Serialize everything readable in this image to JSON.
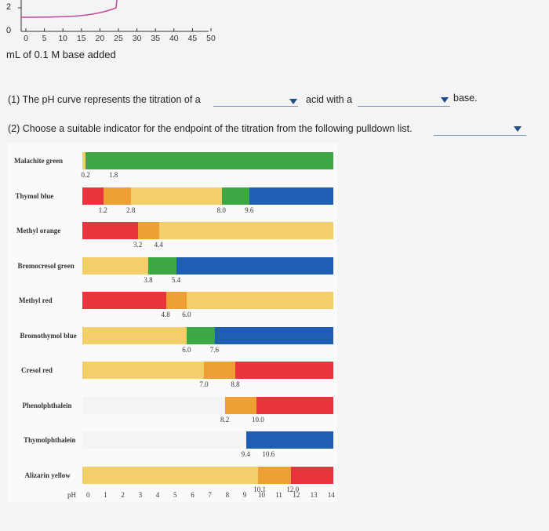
{
  "top_chart": {
    "y_ticks": [
      "2",
      "0"
    ],
    "x_ticks": [
      "0",
      "5",
      "10",
      "15",
      "20",
      "25",
      "30",
      "35",
      "40",
      "45",
      "50"
    ],
    "xlabel": "mL of 0.1 M base added"
  },
  "question1": {
    "part1": "(1) The pH curve represents the titration of a",
    "part2": "acid with a",
    "part3": "base."
  },
  "question2": {
    "text": "(2) Choose a suitable indicator for the endpoint of the titration from the following pulldown list."
  },
  "indicators": [
    {
      "name": "Malachite green",
      "low": "0.2",
      "high": "1.8"
    },
    {
      "name": "Thymol blue",
      "low": "1.2",
      "high": "2.8",
      "low2": "8.0",
      "high2": "9.6"
    },
    {
      "name": "Methyl orange",
      "low": "3.2",
      "high": "4.4"
    },
    {
      "name": "Bromocresol green",
      "low": "3.8",
      "high": "5.4"
    },
    {
      "name": "Methyl red",
      "low": "4.8",
      "high": "6.0"
    },
    {
      "name": "Bromothymol blue",
      "low": "6.0",
      "high": "7.6"
    },
    {
      "name": "Cresol red",
      "low": "7.0",
      "high": "8.8"
    },
    {
      "name": "Phenolphthalein",
      "low": "8.2",
      "high": "10.0"
    },
    {
      "name": "Thymolphthalein",
      "low": "9.4",
      "high": "10.6"
    },
    {
      "name": "Alizarin yellow",
      "low": "10.1",
      "high": "12.0"
    }
  ],
  "ph_axis": {
    "label": "pH",
    "ticks": [
      "0",
      "1",
      "2",
      "3",
      "4",
      "5",
      "6",
      "7",
      "8",
      "9",
      "10",
      "11",
      "12",
      "13",
      "14"
    ]
  },
  "colors": {
    "curve": "#c04a9a",
    "underline": "#6d8fb8",
    "dropdown": "#1f4e8c"
  }
}
